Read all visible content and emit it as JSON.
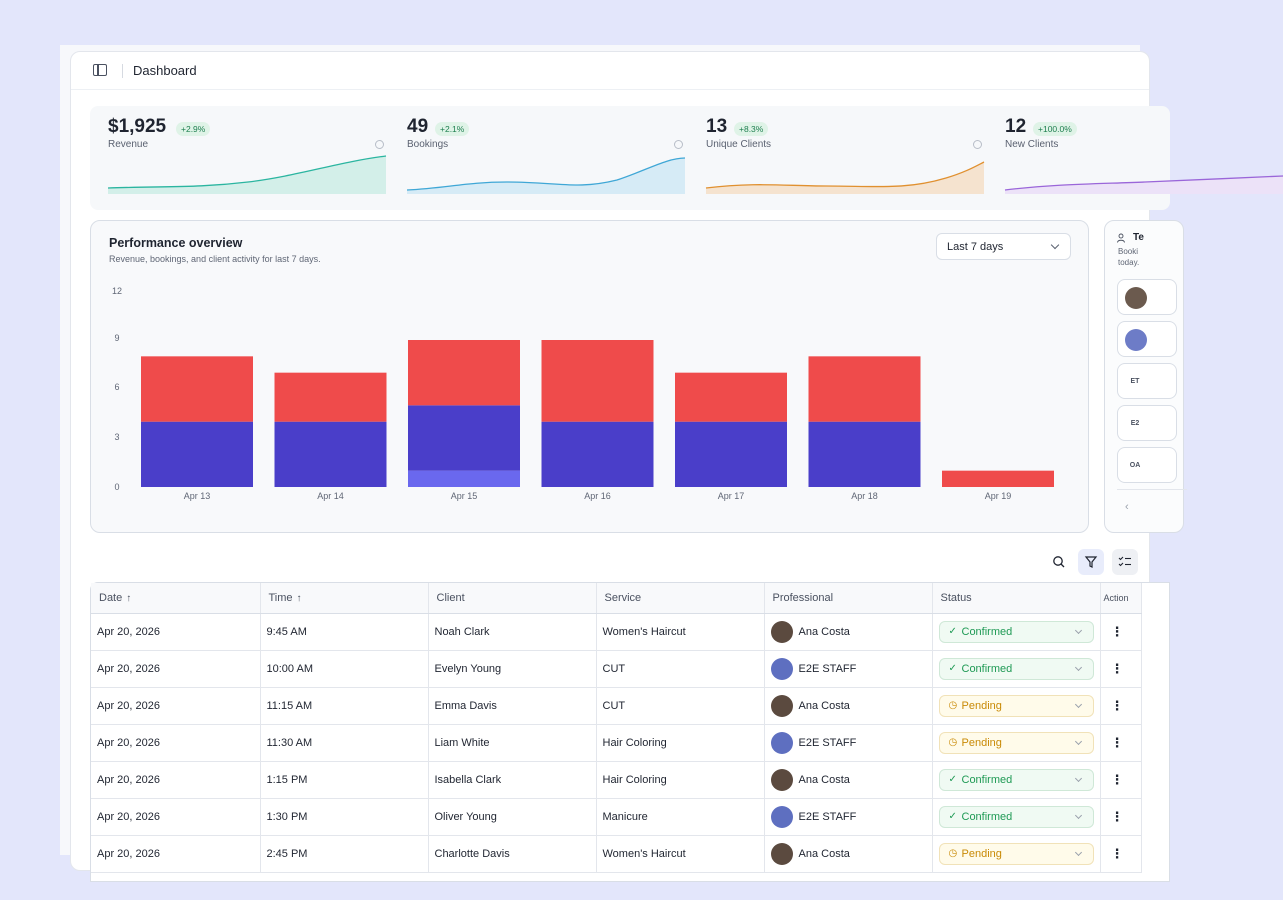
{
  "header": {
    "title": "Dashboard"
  },
  "kpis": [
    {
      "value": "$1,925",
      "change": "+2.9%",
      "label": "Revenue",
      "color": "#2bb5a0",
      "fill": "#d3efe9"
    },
    {
      "value": "49",
      "change": "+2.1%",
      "label": "Bookings",
      "color": "#3fa7d6",
      "fill": "#d6ebf6"
    },
    {
      "value": "13",
      "change": "+8.3%",
      "label": "Unique Clients",
      "color": "#e0902f",
      "fill": "#f5e3cf"
    },
    {
      "value": "12",
      "change": "+100.0%",
      "label": "New Clients",
      "color": "#9a66d9",
      "fill": "#ece2f8"
    }
  ],
  "performance": {
    "title": "Performance overview",
    "subtitle": "Revenue, bookings, and client activity for last 7 days.",
    "range_label": "Last 7 days"
  },
  "chart_data": {
    "type": "bar",
    "stacked": true,
    "categories": [
      "Apr 13",
      "Apr 14",
      "Apr 15",
      "Apr 16",
      "Apr 17",
      "Apr 18",
      "Apr 19"
    ],
    "series": [
      {
        "values": [
          0,
          0,
          1,
          0,
          0,
          0,
          0
        ],
        "color": "#6a68ee"
      },
      {
        "values": [
          4,
          4,
          4,
          4,
          4,
          4,
          0
        ],
        "color": "#4a3ec9"
      },
      {
        "values": [
          4,
          3,
          4,
          5,
          3,
          4,
          1
        ],
        "color": "#ef4b4b"
      }
    ],
    "yticks": [
      "0",
      "3",
      "6",
      "9",
      "12"
    ],
    "ylim": [
      0,
      12
    ]
  },
  "team": {
    "title": "Te",
    "subtitle": "Booki today.",
    "members": [
      {
        "initials": "",
        "color": "#6b5a4e"
      },
      {
        "initials": "",
        "color": "#6d7cc7"
      },
      {
        "initials": "ET",
        "color": "#f1f3f6"
      },
      {
        "initials": "E2",
        "color": "#f1f3f6"
      },
      {
        "initials": "OA",
        "color": "#f1f3f6"
      }
    ],
    "prev_label": "‹"
  },
  "table": {
    "columns": [
      "Date",
      "Time",
      "Client",
      "Service",
      "Professional",
      "Status",
      "Action"
    ],
    "rows": [
      {
        "date": "Apr 20, 2026",
        "time": "9:45 AM",
        "client": "Noah Clark",
        "service": "Women's Haircut",
        "professional": "Ana Costa",
        "avatar": "#5b4a3f",
        "status": "Confirmed",
        "status_type": "confirmed"
      },
      {
        "date": "Apr 20, 2026",
        "time": "10:00 AM",
        "client": "Evelyn Young",
        "service": "CUT",
        "professional": "E2E STAFF",
        "avatar": "#5e6fc0",
        "status": "Confirmed",
        "status_type": "confirmed"
      },
      {
        "date": "Apr 20, 2026",
        "time": "11:15 AM",
        "client": "Emma Davis",
        "service": "CUT",
        "professional": "Ana Costa",
        "avatar": "#5b4a3f",
        "status": "Pending",
        "status_type": "pending"
      },
      {
        "date": "Apr 20, 2026",
        "time": "11:30 AM",
        "client": "Liam White",
        "service": "Hair Coloring",
        "professional": "E2E STAFF",
        "avatar": "#5e6fc0",
        "status": "Pending",
        "status_type": "pending"
      },
      {
        "date": "Apr 20, 2026",
        "time": "1:15 PM",
        "client": "Isabella Clark",
        "service": "Hair Coloring",
        "professional": "Ana Costa",
        "avatar": "#5b4a3f",
        "status": "Confirmed",
        "status_type": "confirmed"
      },
      {
        "date": "Apr 20, 2026",
        "time": "1:30 PM",
        "client": "Oliver Young",
        "service": "Manicure",
        "professional": "E2E STAFF",
        "avatar": "#5e6fc0",
        "status": "Confirmed",
        "status_type": "confirmed"
      },
      {
        "date": "Apr 20, 2026",
        "time": "2:45 PM",
        "client": "Charlotte Davis",
        "service": "Women's Haircut",
        "professional": "Ana Costa",
        "avatar": "#5b4a3f",
        "status": "Pending",
        "status_type": "pending"
      }
    ]
  }
}
